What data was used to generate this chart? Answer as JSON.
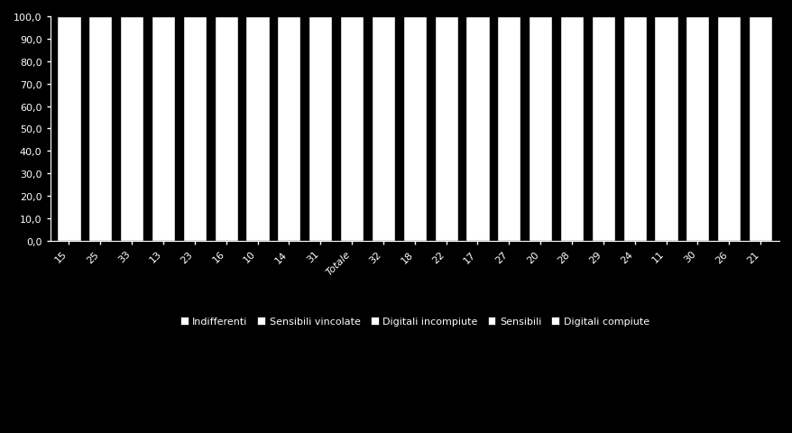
{
  "categories": [
    "15",
    "25",
    "33",
    "13",
    "23",
    "16",
    "10",
    "14",
    "31",
    "Totale",
    "32",
    "18",
    "22",
    "17",
    "27",
    "20",
    "28",
    "29",
    "24",
    "11",
    "30",
    "26",
    "21"
  ],
  "series": [
    {
      "label": "Indifferenti",
      "color": "#ffffff",
      "values": [
        100,
        100,
        100,
        100,
        100,
        100,
        100,
        100,
        100,
        100,
        100,
        100,
        100,
        100,
        100,
        100,
        100,
        100,
        100,
        100,
        100,
        100,
        100
      ]
    },
    {
      "label": "Sensibili vincolate",
      "color": "#ffffff",
      "values": [
        0,
        0,
        0,
        0,
        0,
        0,
        0,
        0,
        0,
        0,
        0,
        0,
        0,
        0,
        0,
        0,
        0,
        0,
        0,
        0,
        0,
        0,
        0
      ]
    },
    {
      "label": "Digitali incompiute",
      "color": "#ffffff",
      "values": [
        0,
        0,
        0,
        0,
        0,
        0,
        0,
        0,
        0,
        0,
        0,
        0,
        0,
        0,
        0,
        0,
        0,
        0,
        0,
        0,
        0,
        0,
        0
      ]
    },
    {
      "label": "Sensibili",
      "color": "#ffffff",
      "values": [
        0,
        0,
        0,
        0,
        0,
        0,
        0,
        0,
        0,
        0,
        0,
        0,
        0,
        0,
        0,
        0,
        0,
        0,
        0,
        0,
        0,
        0,
        0
      ]
    },
    {
      "label": "Digitali compiute",
      "color": "#ffffff",
      "values": [
        0,
        0,
        0,
        0,
        0,
        0,
        0,
        0,
        0,
        0,
        0,
        0,
        0,
        0,
        0,
        0,
        0,
        0,
        0,
        0,
        0,
        0,
        0
      ]
    }
  ],
  "ylim": [
    0,
    100
  ],
  "yticks": [
    0,
    10,
    20,
    30,
    40,
    50,
    60,
    70,
    80,
    90,
    100
  ],
  "ytick_labels": [
    "0,0",
    "10,0",
    "20,0",
    "30,0",
    "40,0",
    "50,0",
    "60,0",
    "70,0",
    "80,0",
    "90,0",
    "100,0"
  ],
  "background_color": "#000000",
  "bar_edge_color": "#000000",
  "text_color": "#ffffff",
  "bar_width": 0.75,
  "legend_square_color": "#ffffff"
}
